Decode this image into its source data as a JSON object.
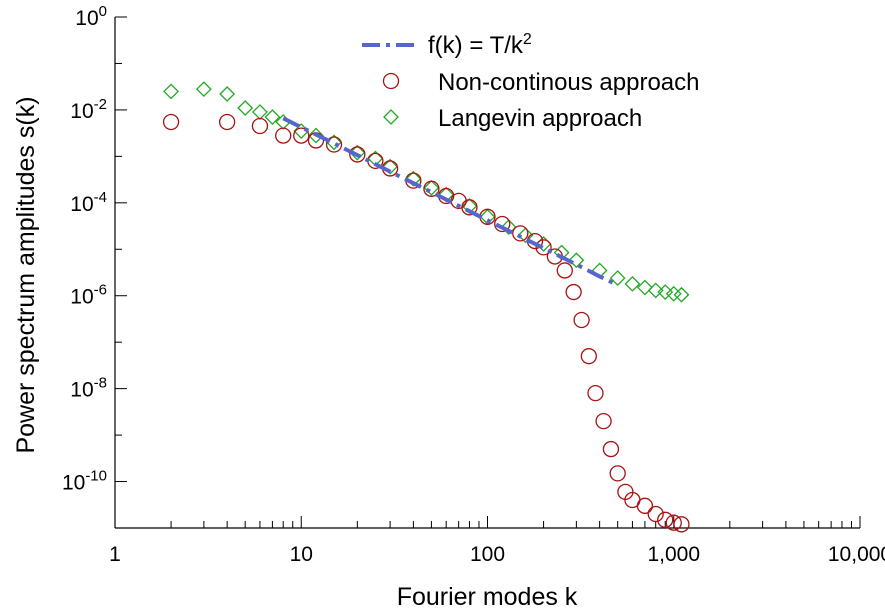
{
  "chart_data": {
    "type": "scatter",
    "xlabel": "Fourier modes k",
    "ylabel": "Power spectrum amplitudes s(k)",
    "x_scale": "log",
    "y_scale": "log",
    "xlim": [
      1,
      10000
    ],
    "ylim": [
      1e-11,
      1
    ],
    "x_ticks": [
      {
        "value": 1,
        "label": "1"
      },
      {
        "value": 10,
        "label": "10"
      },
      {
        "value": 100,
        "label": "100"
      },
      {
        "value": 1000,
        "label": "1,000"
      },
      {
        "value": 10000,
        "label": "10,000"
      }
    ],
    "y_ticks": [
      {
        "value": 1,
        "base": "10",
        "exp": "0"
      },
      {
        "value": 0.01,
        "base": "10",
        "exp": "-2"
      },
      {
        "value": 0.0001,
        "base": "10",
        "exp": "-4"
      },
      {
        "value": 1e-06,
        "base": "10",
        "exp": "-6"
      },
      {
        "value": 1e-08,
        "base": "10",
        "exp": "-8"
      },
      {
        "value": 1e-10,
        "base": "10",
        "exp": "-10"
      }
    ],
    "grid": false,
    "legend_position": "top-center",
    "series": [
      {
        "name": "f(k) = T/k²",
        "legend_main": "f(k) = T/k",
        "legend_sup": "2",
        "kind": "line",
        "style": "dash-dot",
        "color": "#5566cc",
        "points": [
          [
            8,
            0.0066
          ],
          [
            15,
            0.0019
          ],
          [
            30,
            0.00047
          ],
          [
            60,
            0.000118
          ],
          [
            100,
            4.2e-05
          ],
          [
            200,
            1.06e-05
          ],
          [
            300,
            4.7e-06
          ],
          [
            400,
            2.6e-06
          ],
          [
            500,
            1.7e-06
          ]
        ]
      },
      {
        "name": "Non-continous approach",
        "kind": "scatter",
        "marker": "circle",
        "color": "#aa1111",
        "points": [
          [
            2,
            0.0055
          ],
          [
            4,
            0.0055
          ],
          [
            6,
            0.0045
          ],
          [
            8,
            0.0028
          ],
          [
            10,
            0.0028
          ],
          [
            12,
            0.0022
          ],
          [
            15,
            0.0018
          ],
          [
            20,
            0.0011
          ],
          [
            25,
            0.0008
          ],
          [
            30,
            0.00055
          ],
          [
            40,
            0.0003
          ],
          [
            50,
            0.0002
          ],
          [
            60,
            0.00014
          ],
          [
            70,
            0.00011
          ],
          [
            80,
            8e-05
          ],
          [
            100,
            5e-05
          ],
          [
            120,
            3.5e-05
          ],
          [
            150,
            2.2e-05
          ],
          [
            180,
            1.5e-05
          ],
          [
            200,
            1.1e-05
          ],
          [
            230,
            7e-06
          ],
          [
            260,
            3.5e-06
          ],
          [
            290,
            1.2e-06
          ],
          [
            320,
            3e-07
          ],
          [
            350,
            5e-08
          ],
          [
            380,
            8e-09
          ],
          [
            420,
            2e-09
          ],
          [
            460,
            5e-10
          ],
          [
            500,
            1.5e-10
          ],
          [
            550,
            6e-11
          ],
          [
            600,
            4e-11
          ],
          [
            700,
            3e-11
          ],
          [
            800,
            2e-11
          ],
          [
            900,
            1.5e-11
          ],
          [
            1000,
            1.3e-11
          ],
          [
            1100,
            1.2e-11
          ]
        ]
      },
      {
        "name": "Langevin approach",
        "kind": "scatter",
        "marker": "diamond",
        "color": "#22aa22",
        "points": [
          [
            2,
            0.025
          ],
          [
            3,
            0.028
          ],
          [
            4,
            0.022
          ],
          [
            5,
            0.011
          ],
          [
            6,
            0.009
          ],
          [
            7,
            0.007
          ],
          [
            8,
            0.0055
          ],
          [
            10,
            0.0035
          ],
          [
            12,
            0.0028
          ],
          [
            15,
            0.002
          ],
          [
            20,
            0.0012
          ],
          [
            25,
            0.0009
          ],
          [
            30,
            0.0006
          ],
          [
            40,
            0.00033
          ],
          [
            50,
            0.00021
          ],
          [
            60,
            0.00015
          ],
          [
            80,
            8.5e-05
          ],
          [
            100,
            5e-05
          ],
          [
            130,
            3e-05
          ],
          [
            160,
            2e-05
          ],
          [
            200,
            1.3e-05
          ],
          [
            250,
            8.5e-06
          ],
          [
            300,
            5.8e-06
          ],
          [
            400,
            3.5e-06
          ],
          [
            500,
            2.4e-06
          ],
          [
            600,
            1.8e-06
          ],
          [
            700,
            1.5e-06
          ],
          [
            800,
            1.3e-06
          ],
          [
            900,
            1.2e-06
          ],
          [
            1000,
            1.1e-06
          ],
          [
            1100,
            1.05e-06
          ]
        ]
      }
    ]
  }
}
